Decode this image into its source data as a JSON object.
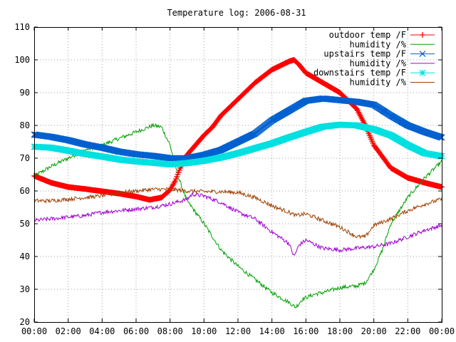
{
  "chart_data": {
    "type": "line",
    "title": "Temperature log: 2006-08-31",
    "xlabel": "",
    "ylabel": "",
    "xlim": [
      "00:00",
      "24:00"
    ],
    "ylim": [
      20,
      110
    ],
    "x_ticks": [
      "00:00",
      "02:00",
      "04:00",
      "06:00",
      "08:00",
      "10:00",
      "12:00",
      "14:00",
      "16:00",
      "18:00",
      "20:00",
      "22:00",
      "00:00"
    ],
    "y_ticks": [
      20,
      30,
      40,
      50,
      60,
      70,
      80,
      90,
      100,
      110
    ],
    "grid": true,
    "legend_position": "top-right",
    "x_unit": "hours",
    "series": [
      {
        "name": "outdoor temp /F",
        "color": "#ff0000",
        "marker": "plus",
        "style": "thick",
        "points": [
          [
            0,
            64.6
          ],
          [
            1,
            62.5
          ],
          [
            2,
            61.2
          ],
          [
            3,
            60.6
          ],
          [
            4,
            59.9
          ],
          [
            5,
            59.2
          ],
          [
            6,
            58.3
          ],
          [
            6.8,
            57.3
          ],
          [
            7.5,
            58
          ],
          [
            8,
            60.3
          ],
          [
            8.3,
            63
          ],
          [
            8.6,
            67
          ],
          [
            9,
            71
          ],
          [
            9.5,
            74
          ],
          [
            10,
            77
          ],
          [
            10.5,
            79.5
          ],
          [
            11,
            83
          ],
          [
            12,
            88
          ],
          [
            13,
            93
          ],
          [
            14,
            97
          ],
          [
            15,
            99.5
          ],
          [
            15.3,
            100
          ],
          [
            15.6,
            98.5
          ],
          [
            16,
            96
          ],
          [
            17,
            93
          ],
          [
            18,
            90
          ],
          [
            19,
            85
          ],
          [
            19.5,
            80
          ],
          [
            20,
            74
          ],
          [
            21,
            67
          ],
          [
            22,
            64
          ],
          [
            23,
            62.5
          ],
          [
            24,
            61.2
          ]
        ]
      },
      {
        "name": "humidity /%",
        "color": "#00a000",
        "marker": "none",
        "style": "thin",
        "points": [
          [
            0,
            64.5
          ],
          [
            1,
            67.5
          ],
          [
            2,
            70
          ],
          [
            3,
            72.5
          ],
          [
            4,
            74
          ],
          [
            5,
            76
          ],
          [
            6,
            78
          ],
          [
            7,
            80
          ],
          [
            7.5,
            79.5
          ],
          [
            8,
            74
          ],
          [
            8.5,
            64
          ],
          [
            9,
            57
          ],
          [
            10,
            50
          ],
          [
            11,
            42
          ],
          [
            12,
            37
          ],
          [
            13,
            33
          ],
          [
            14,
            29
          ],
          [
            15,
            26
          ],
          [
            15.4,
            24.5
          ],
          [
            15.8,
            27
          ],
          [
            16.5,
            28.5
          ],
          [
            17,
            29
          ],
          [
            18,
            30.5
          ],
          [
            19,
            31
          ],
          [
            19.5,
            32
          ],
          [
            20,
            36
          ],
          [
            20.5,
            42
          ],
          [
            21,
            50
          ],
          [
            22,
            58
          ],
          [
            23,
            64
          ],
          [
            24,
            69
          ]
        ]
      },
      {
        "name": "upstairs temp /F",
        "color": "#0060d0",
        "marker": "cross",
        "style": "thick",
        "points": [
          [
            0,
            77.2
          ],
          [
            1,
            76.5
          ],
          [
            2,
            75.5
          ],
          [
            3,
            74.2
          ],
          [
            4,
            73.2
          ],
          [
            5,
            72
          ],
          [
            6,
            71.2
          ],
          [
            7,
            70.7
          ],
          [
            8,
            70
          ],
          [
            9,
            70
          ],
          [
            10,
            71
          ],
          [
            11,
            72.5
          ],
          [
            12,
            75
          ],
          [
            13,
            77.5
          ],
          [
            14,
            81.5
          ],
          [
            15,
            84.5
          ],
          [
            16,
            87.5
          ],
          [
            17,
            88.2
          ],
          [
            18,
            87.7
          ],
          [
            19,
            87.2
          ],
          [
            20,
            86.3
          ],
          [
            21,
            83
          ],
          [
            22,
            80
          ],
          [
            23,
            78
          ],
          [
            24,
            76.3
          ]
        ]
      },
      {
        "name": "humidity /%",
        "color": "#a000d0",
        "marker": "none",
        "style": "thin",
        "points": [
          [
            0,
            51
          ],
          [
            1,
            51.5
          ],
          [
            2,
            52
          ],
          [
            3,
            52.5
          ],
          [
            4,
            53.5
          ],
          [
            5,
            54
          ],
          [
            6,
            54.5
          ],
          [
            7,
            55
          ],
          [
            8,
            56
          ],
          [
            9,
            57.5
          ],
          [
            9.3,
            59
          ],
          [
            10,
            58.5
          ],
          [
            11,
            56.5
          ],
          [
            12,
            53.5
          ],
          [
            13,
            51.5
          ],
          [
            14,
            47.5
          ],
          [
            15,
            44
          ],
          [
            15.3,
            40
          ],
          [
            15.6,
            43.5
          ],
          [
            16,
            45
          ],
          [
            17,
            42.5
          ],
          [
            18,
            42
          ],
          [
            19,
            42.5
          ],
          [
            20,
            43
          ],
          [
            21,
            44
          ],
          [
            22,
            46
          ],
          [
            23,
            48
          ],
          [
            24,
            49.5
          ]
        ]
      },
      {
        "name": "downstairs temp /F",
        "color": "#00e0e0",
        "marker": "star",
        "style": "thick",
        "points": [
          [
            0,
            73.5
          ],
          [
            1,
            73.2
          ],
          [
            2,
            72.3
          ],
          [
            3,
            71.3
          ],
          [
            4,
            70.5
          ],
          [
            5,
            69.6
          ],
          [
            6,
            69
          ],
          [
            7,
            68.6
          ],
          [
            8,
            68.1
          ],
          [
            9,
            68.5
          ],
          [
            10,
            69.2
          ],
          [
            11,
            70.2
          ],
          [
            12,
            71.5
          ],
          [
            13,
            73
          ],
          [
            14,
            74.5
          ],
          [
            15,
            76.3
          ],
          [
            16,
            78
          ],
          [
            17,
            79.6
          ],
          [
            18,
            80.2
          ],
          [
            19,
            80
          ],
          [
            20,
            78.8
          ],
          [
            21,
            77
          ],
          [
            22,
            74
          ],
          [
            23,
            71.5
          ],
          [
            24,
            70.6
          ]
        ]
      },
      {
        "name": "humidity /%",
        "color": "#a04000",
        "marker": "none",
        "style": "thin",
        "points": [
          [
            0,
            57
          ],
          [
            1,
            57
          ],
          [
            2,
            57.5
          ],
          [
            3,
            58
          ],
          [
            4,
            58.5
          ],
          [
            5,
            59.5
          ],
          [
            6,
            60
          ],
          [
            7,
            60.5
          ],
          [
            8,
            60.5
          ],
          [
            9,
            60
          ],
          [
            10,
            59.8
          ],
          [
            11,
            59.8
          ],
          [
            12,
            59.5
          ],
          [
            13,
            58
          ],
          [
            14,
            55.5
          ],
          [
            15,
            53.5
          ],
          [
            15.4,
            52.5
          ],
          [
            16,
            53
          ],
          [
            17,
            51
          ],
          [
            18,
            49
          ],
          [
            19,
            46
          ],
          [
            19.5,
            46
          ],
          [
            20,
            49.5
          ],
          [
            21,
            51.5
          ],
          [
            22,
            54
          ],
          [
            23,
            56
          ],
          [
            24,
            57.5
          ]
        ]
      }
    ]
  }
}
